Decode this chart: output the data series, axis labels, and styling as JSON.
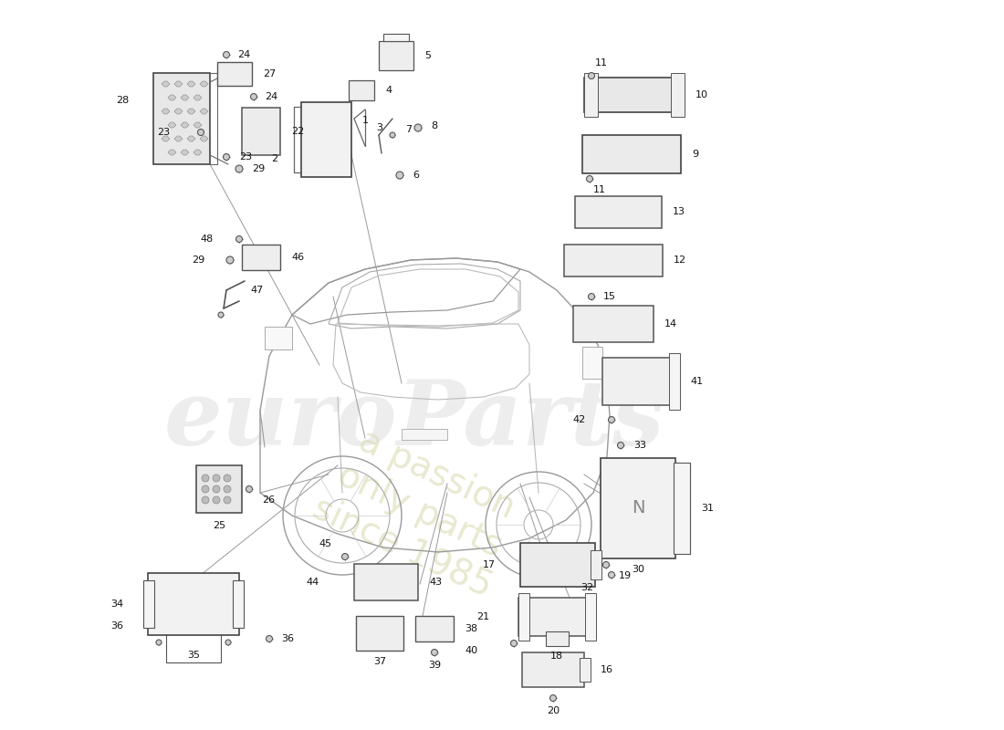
{
  "bg_color": "#ffffff",
  "line_color": "#555555",
  "comp_edge": "#555555",
  "comp_face": "#f0f0f0",
  "label_color": "#111111",
  "watermark1": "euroParts",
  "watermark2": "a passion\nonly parts\nsince 1985",
  "leader_lines": [
    [
      0.315,
      0.745,
      0.42,
      0.6
    ],
    [
      0.405,
      0.765,
      0.45,
      0.63
    ],
    [
      0.48,
      0.775,
      0.49,
      0.65
    ],
    [
      0.48,
      0.84,
      0.49,
      0.67
    ],
    [
      0.52,
      0.89,
      0.5,
      0.7
    ],
    [
      0.665,
      0.81,
      0.56,
      0.68
    ],
    [
      0.66,
      0.74,
      0.56,
      0.65
    ],
    [
      0.66,
      0.695,
      0.58,
      0.6
    ],
    [
      0.66,
      0.64,
      0.6,
      0.58
    ],
    [
      0.695,
      0.545,
      0.61,
      0.54
    ],
    [
      0.685,
      0.41,
      0.63,
      0.5
    ],
    [
      0.29,
      0.527,
      0.39,
      0.5
    ],
    [
      0.3,
      0.24,
      0.42,
      0.38
    ],
    [
      0.46,
      0.292,
      0.5,
      0.43
    ],
    [
      0.46,
      0.248,
      0.5,
      0.42
    ],
    [
      0.58,
      0.283,
      0.54,
      0.42
    ],
    [
      0.6,
      0.24,
      0.55,
      0.41
    ]
  ]
}
